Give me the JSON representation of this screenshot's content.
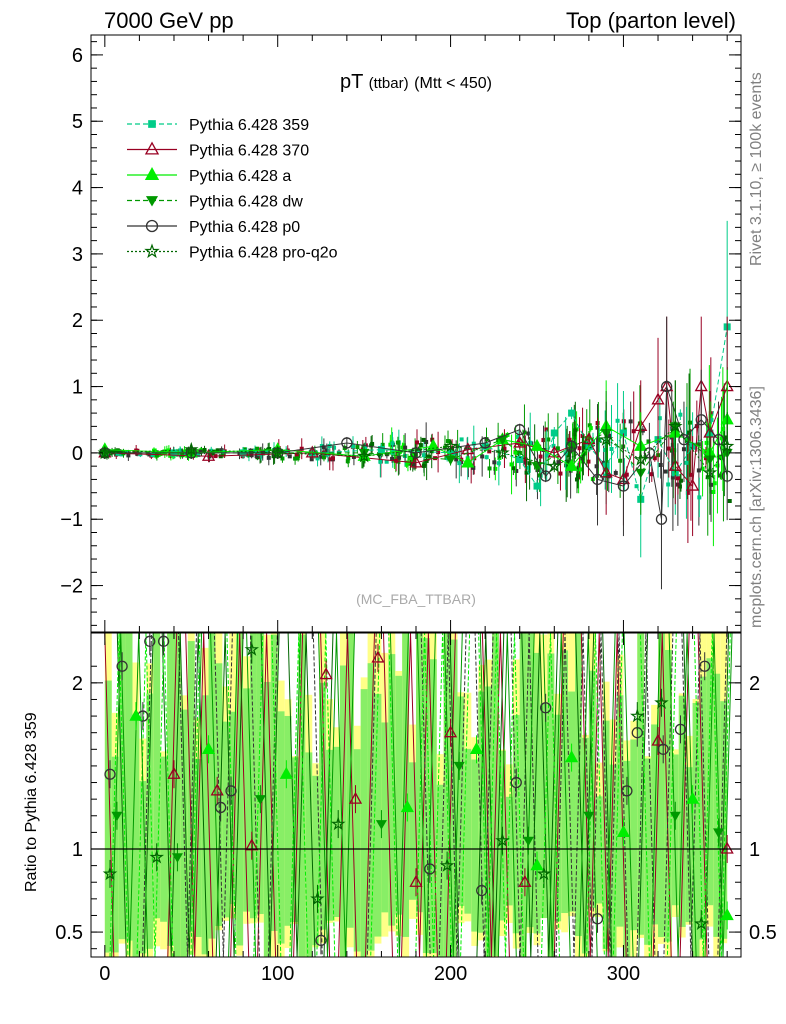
{
  "header": {
    "left": "7000 GeV pp",
    "right": "Top (parton level)"
  },
  "side_labels": {
    "rivet": "Rivet 3.1.10, ≥ 100k events",
    "mcplots": "mcplots.cern.ch [arXiv:1306.3436]"
  },
  "chart_data": [
    {
      "type": "line",
      "panel": "main",
      "title": "pT (ttbar) (Mtt < 450)",
      "title_main": "pT",
      "title_sub": "(ttbar)",
      "title_tail": "(Mtt < 450)",
      "watermark": "(MC_FBA_TTBAR)",
      "xlabel": "",
      "ylabel": "",
      "xlim": [
        -8,
        368
      ],
      "ylim": [
        -2.7,
        6.3
      ],
      "x_ticks": [
        0,
        100,
        200,
        300
      ],
      "y_ticks": [
        -2,
        -1,
        0,
        1,
        2,
        3,
        4,
        5,
        6
      ],
      "y_tick_labels": [
        "−2",
        "−1",
        "0",
        "1",
        "2",
        "3",
        "4",
        "5",
        "6"
      ],
      "legend_position": "top-left",
      "series": [
        {
          "name": "Pythia 6.428 359",
          "color": "#00cc88",
          "marker": "square",
          "line": "dashed",
          "x": [
            0,
            40,
            80,
            120,
            160,
            200,
            220,
            240,
            250,
            260,
            270,
            280,
            290,
            300,
            310,
            320,
            330,
            340,
            350,
            360
          ],
          "y": [
            0.0,
            0.0,
            0.0,
            0.0,
            0.05,
            0.0,
            0.1,
            -0.1,
            -0.5,
            0.3,
            0.6,
            0.1,
            -0.2,
            0.3,
            -0.7,
            0.2,
            -0.3,
            0.1,
            0.3,
            1.9
          ]
        },
        {
          "name": "Pythia 6.428 370",
          "color": "#990022",
          "marker": "triangle-open",
          "line": "solid",
          "x": [
            0,
            60,
            120,
            180,
            210,
            240,
            260,
            280,
            290,
            300,
            310,
            320,
            325,
            330,
            340,
            345,
            350,
            360
          ],
          "y": [
            0.0,
            -0.05,
            0.0,
            -0.15,
            0.05,
            0.15,
            0.0,
            0.2,
            -0.3,
            -0.4,
            0.4,
            0.8,
            1.0,
            -0.2,
            -0.5,
            1.0,
            0.3,
            1.0
          ]
        },
        {
          "name": "Pythia 6.428 a",
          "color": "#00ee00",
          "marker": "triangle",
          "line": "solid",
          "x": [
            0,
            50,
            100,
            150,
            190,
            210,
            230,
            250,
            270,
            290,
            310,
            330,
            350,
            360
          ],
          "y": [
            0.05,
            0.0,
            0.05,
            -0.05,
            0.1,
            -0.15,
            0.2,
            0.1,
            -0.2,
            0.4,
            0.1,
            0.3,
            0.0,
            0.5
          ]
        },
        {
          "name": "Pythia 6.428 dw",
          "color": "#009900",
          "marker": "triangle-down",
          "line": "dashed",
          "x": [
            0,
            50,
            100,
            150,
            200,
            230,
            250,
            270,
            290,
            310,
            330,
            350,
            360
          ],
          "y": [
            0.0,
            0.0,
            0.0,
            0.0,
            -0.1,
            0.2,
            -0.2,
            0.1,
            0.3,
            -0.3,
            0.4,
            -0.1,
            0.0
          ]
        },
        {
          "name": "Pythia 6.428 p0",
          "color": "#333333",
          "marker": "circle-open",
          "line": "solid",
          "x": [
            0,
            50,
            100,
            140,
            180,
            220,
            240,
            255,
            270,
            285,
            300,
            315,
            322,
            325,
            335,
            345,
            355,
            360
          ],
          "y": [
            0.0,
            0.0,
            0.0,
            0.15,
            0.0,
            0.15,
            0.35,
            -0.35,
            0.1,
            -0.4,
            -0.5,
            0.0,
            -1.0,
            1.0,
            0.2,
            0.5,
            0.2,
            -0.35
          ]
        },
        {
          "name": "Pythia 6.428 pro-q2o",
          "color": "#006600",
          "marker": "star",
          "line": "dotted",
          "x": [
            0,
            50,
            100,
            150,
            200,
            230,
            260,
            290,
            310,
            330,
            350,
            360
          ],
          "y": [
            0.0,
            0.05,
            0.0,
            -0.05,
            0.1,
            0.0,
            -0.2,
            0.2,
            -0.1,
            0.4,
            -0.3,
            0.1
          ]
        }
      ]
    },
    {
      "type": "line",
      "panel": "ratio",
      "ylabel": "Ratio to Pythia 6.428 359",
      "xlim": [
        -8,
        368
      ],
      "ylim": [
        0.35,
        2.3
      ],
      "y_ticks": [
        0.5,
        1,
        2
      ],
      "y_tick_labels": [
        "0.5",
        "1",
        "2"
      ],
      "x_ticks": [
        0,
        100,
        200,
        300
      ],
      "reference_line": 1,
      "band_colors": {
        "yellow": "#ffff88",
        "green": "#88ee66"
      },
      "series": [
        {
          "name": "Pythia 6.428 370",
          "color": "#990022",
          "marker": "triangle-open",
          "x": [
            40,
            65,
            85,
            128,
            145,
            158,
            180,
            200,
            243,
            320,
            360
          ],
          "y": [
            1.45,
            1.35,
            1.02,
            2.05,
            1.3,
            2.15,
            0.8,
            1.7,
            0.8,
            1.65,
            1.0
          ]
        },
        {
          "name": "Pythia 6.428 p0",
          "color": "#333333",
          "marker": "circle-open",
          "x": [
            3,
            10,
            22,
            26,
            34,
            67,
            73,
            125,
            188,
            218,
            238,
            255,
            285,
            302,
            308,
            323,
            333,
            347
          ],
          "y": [
            1.45,
            2.1,
            1.8,
            2.25,
            2.25,
            1.25,
            1.35,
            0.45,
            0.88,
            0.75,
            1.4,
            1.85,
            0.58,
            1.35,
            1.7,
            1.6,
            1.72,
            2.1
          ]
        },
        {
          "name": "Pythia 6.428 pro-q2o",
          "color": "#006600",
          "marker": "star",
          "x": [
            3,
            30,
            85,
            123,
            135,
            198,
            230,
            254,
            308,
            322,
            345
          ],
          "y": [
            0.85,
            0.95,
            2.2,
            0.7,
            1.15,
            0.9,
            1.05,
            0.85,
            1.8,
            1.88,
            0.55
          ]
        },
        {
          "name": "Pythia 6.428 a",
          "color": "#00ee00",
          "marker": "triangle",
          "x": [
            18,
            60,
            105,
            175,
            215,
            250,
            270,
            300,
            340,
            360
          ],
          "y": [
            1.8,
            1.6,
            1.45,
            1.25,
            1.6,
            0.9,
            1.55,
            1.1,
            1.3,
            0.6
          ]
        },
        {
          "name": "Pythia 6.428 dw",
          "color": "#009900",
          "marker": "triangle-down",
          "x": [
            7,
            42,
            90,
            160,
            205,
            245,
            280,
            330,
            355
          ],
          "y": [
            1.2,
            0.95,
            1.3,
            1.15,
            1.5,
            1.05,
            1.2,
            1.2,
            1.1
          ]
        }
      ]
    }
  ]
}
